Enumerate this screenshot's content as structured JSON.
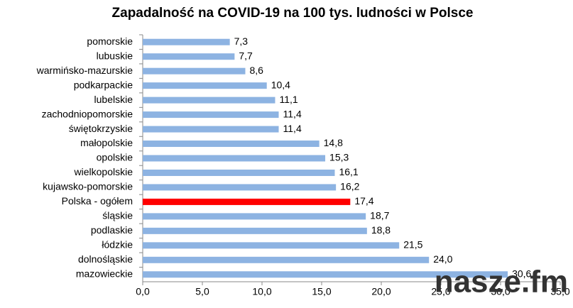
{
  "chart_data": {
    "type": "barh",
    "title": "Zapadalność na COVID-19 na 100 tys. ludności w Polsce",
    "categories": [
      "pomorskie",
      "lubuskie",
      "warmińsko-mazurskie",
      "podkarpackie",
      "lubelskie",
      "zachodniopomorskie",
      "świętokrzyskie",
      "małopolskie",
      "opolskie",
      "wielkopolskie",
      "kujawsko-pomorskie",
      "Polska - ogółem",
      "śląskie",
      "podlaskie",
      "łódzkie",
      "dolnośląskie",
      "mazowieckie"
    ],
    "values": [
      7.3,
      7.7,
      8.6,
      10.4,
      11.1,
      11.4,
      11.4,
      14.8,
      15.3,
      16.1,
      16.2,
      17.4,
      18.7,
      18.8,
      21.5,
      24.0,
      30.6
    ],
    "value_labels": [
      "7,3",
      "7,7",
      "8,6",
      "10,4",
      "11,1",
      "11,4",
      "11,4",
      "14,8",
      "15,3",
      "16,1",
      "16,2",
      "17,4",
      "18,7",
      "18,8",
      "21,5",
      "24,0",
      "30,6"
    ],
    "colors": [
      "#8db3e2",
      "#8db3e2",
      "#8db3e2",
      "#8db3e2",
      "#8db3e2",
      "#8db3e2",
      "#8db3e2",
      "#8db3e2",
      "#8db3e2",
      "#8db3e2",
      "#8db3e2",
      "#ff0000",
      "#8db3e2",
      "#8db3e2",
      "#8db3e2",
      "#8db3e2",
      "#8db3e2"
    ],
    "xlim": [
      0,
      35
    ],
    "xticks": [
      {
        "value": 0,
        "label": "0,0"
      },
      {
        "value": 5,
        "label": "5,0"
      },
      {
        "value": 10,
        "label": "10,0"
      },
      {
        "value": 15,
        "label": "15,0"
      },
      {
        "value": 20,
        "label": "20,0"
      },
      {
        "value": 25,
        "label": "25,0"
      },
      {
        "value": 30,
        "label": "30,0"
      },
      {
        "value": 35,
        "label": "35,0"
      }
    ],
    "watermark": "nasze.fm"
  }
}
